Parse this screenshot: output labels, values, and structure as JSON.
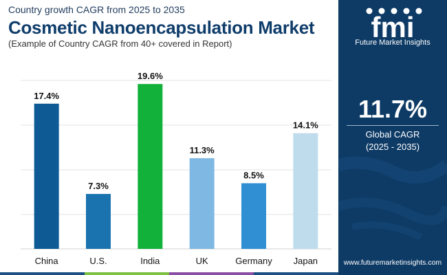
{
  "header": {
    "subtitle": "Country growth CAGR from 2025 to 2035",
    "title": "Cosmetic Nanoencapsulation Market",
    "note": "(Example of Country CAGR from 40+ covered in Report)"
  },
  "brand": {
    "logo_text": "fmi",
    "tagline": "Future Market Insights",
    "website": "www.futuremarketinsights.com"
  },
  "summary": {
    "value": "11.7%",
    "label": "Global CAGR",
    "period": "(2025 - 2035)"
  },
  "colors": {
    "panel": "#0e3b66",
    "title": "#0f3d6b",
    "strip": [
      "#1b4f82",
      "#7cc142",
      "#8a4fa3",
      "#1b4f82"
    ]
  },
  "chart_data": {
    "type": "bar",
    "title": "Cosmetic Nanoencapsulation Market",
    "categories": [
      "China",
      "U.S.",
      "India",
      "UK",
      "Germany",
      "Japan"
    ],
    "values": [
      17.4,
      7.3,
      19.6,
      11.3,
      8.5,
      14.1
    ],
    "value_labels": [
      "17.4%",
      "7.3%",
      "19.6%",
      "11.3%",
      "8.5%",
      "14.1%"
    ],
    "colors": [
      "#0d5a94",
      "#1a72ae",
      "#11b13a",
      "#7fb8e2",
      "#2f8fd2",
      "#bfdcec"
    ],
    "unit": "%",
    "xlabel": "",
    "ylabel": "",
    "ylim": [
      0,
      20
    ],
    "grid": true,
    "legend": "none"
  }
}
